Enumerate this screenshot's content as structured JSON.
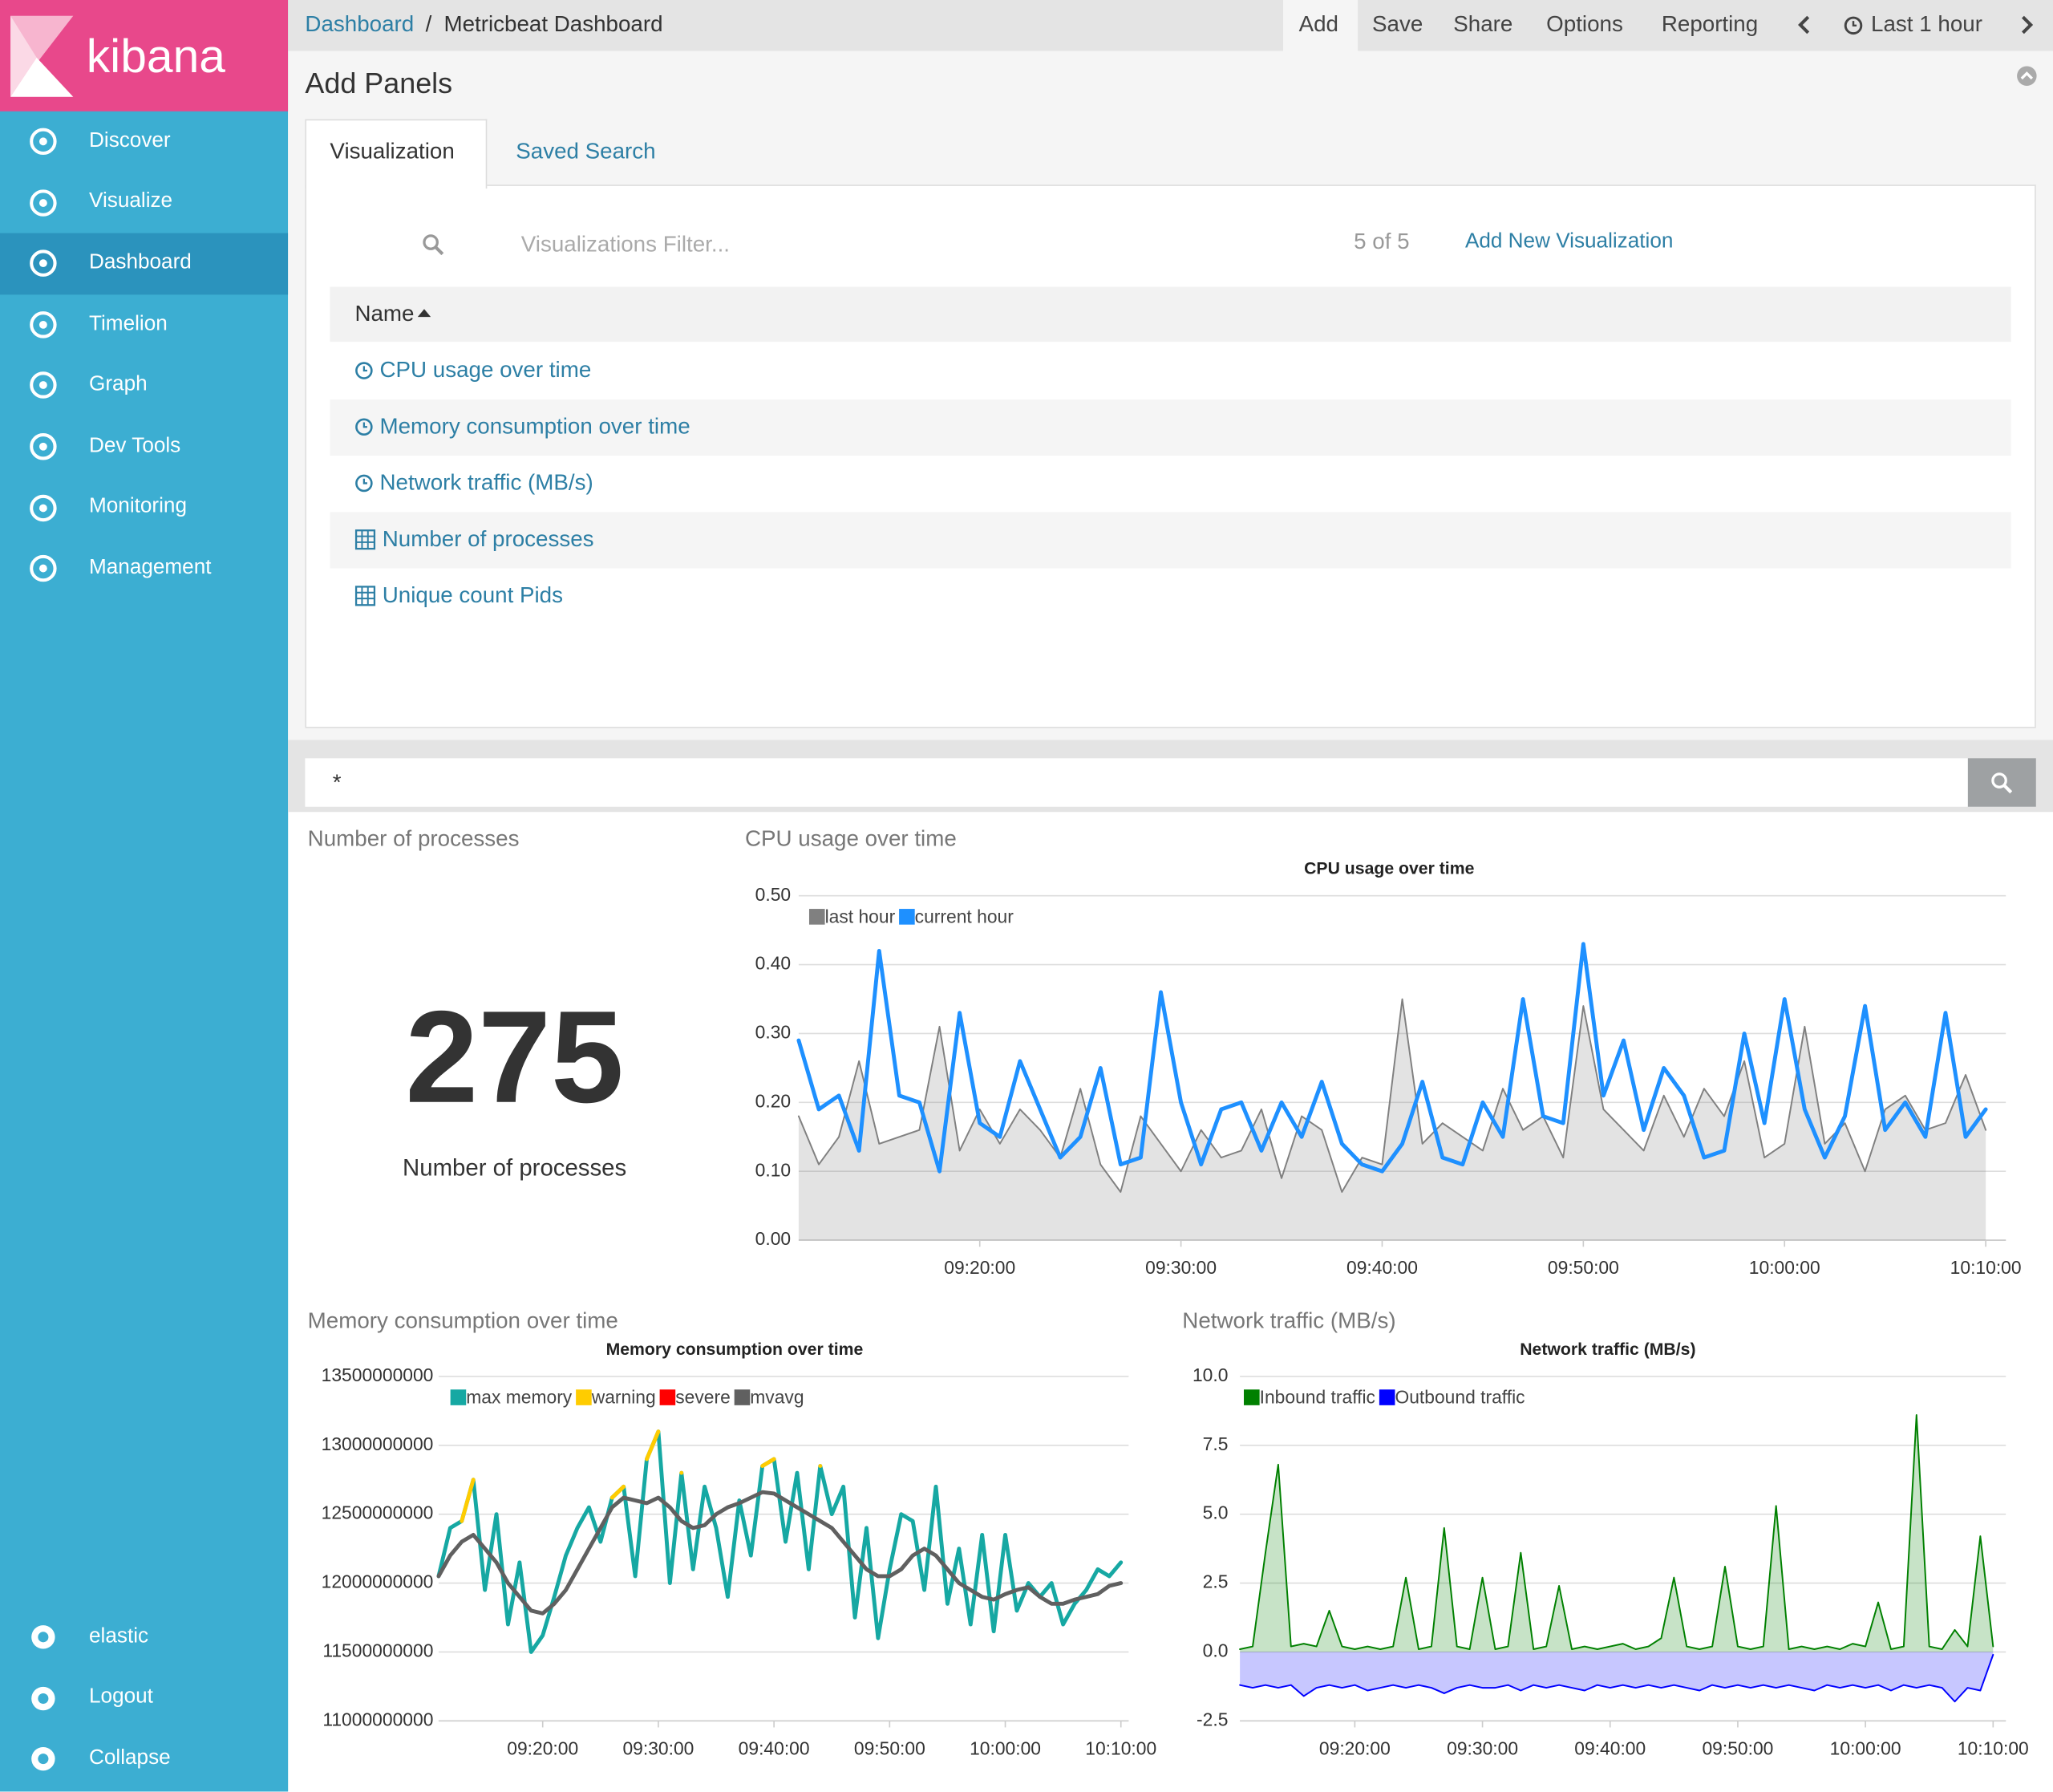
{
  "sidebar": {
    "brand": "kibana",
    "nav": [
      "Discover",
      "Visualize",
      "Dashboard",
      "Timelion",
      "Graph",
      "Dev Tools",
      "Monitoring",
      "Management"
    ],
    "active": "Dashboard",
    "footer": [
      "elastic",
      "Logout",
      "Collapse"
    ]
  },
  "breadcrumb": {
    "items": [
      "Dashboard",
      "Metricbeat Dashboard"
    ],
    "separator": "/"
  },
  "top_menu": [
    "Add",
    "Save",
    "Share",
    "Options",
    "Reporting"
  ],
  "time_range": "Last 1 hour",
  "add_panels": {
    "title": "Add Panels",
    "tabs": [
      "Visualization",
      "Saved Search"
    ],
    "filter_placeholder": "Visualizations Filter...",
    "count": "5 of 5",
    "add_new": "Add New Visualization",
    "column": "Name",
    "items": [
      {
        "name": "CPU usage over time",
        "icon": "clock"
      },
      {
        "name": "Memory consumption over time",
        "icon": "clock"
      },
      {
        "name": "Network traffic (MB/s)",
        "icon": "clock"
      },
      {
        "name": "Number of processes",
        "icon": "table"
      },
      {
        "name": "Unique count Pids",
        "icon": "table"
      }
    ]
  },
  "query": "*",
  "metric": {
    "panel_title": "Number of processes",
    "value": 275,
    "label": "Number of processes"
  },
  "chart_data": [
    {
      "type": "line",
      "panel_title": "CPU usage over time",
      "title": "CPU usage over time",
      "x": [
        "09:11:00",
        "09:12:00",
        "09:13:00",
        "09:14:00",
        "09:15:00",
        "09:16:00",
        "09:17:00",
        "09:18:00",
        "09:19:00",
        "09:20:00",
        "09:21:00",
        "09:22:00",
        "09:23:00",
        "09:24:00",
        "09:25:00",
        "09:26:00",
        "09:27:00",
        "09:28:00",
        "09:29:00",
        "09:30:00",
        "09:31:00",
        "09:32:00",
        "09:33:00",
        "09:34:00",
        "09:35:00",
        "09:36:00",
        "09:37:00",
        "09:38:00",
        "09:39:00",
        "09:40:00",
        "09:41:00",
        "09:42:00",
        "09:43:00",
        "09:44:00",
        "09:45:00",
        "09:46:00",
        "09:47:00",
        "09:48:00",
        "09:49:00",
        "09:50:00",
        "09:51:00",
        "09:52:00",
        "09:53:00",
        "09:54:00",
        "09:55:00",
        "09:56:00",
        "09:57:00",
        "09:58:00",
        "09:59:00",
        "10:00:00",
        "10:01:00",
        "10:02:00",
        "10:03:00",
        "10:04:00",
        "10:05:00",
        "10:06:00",
        "10:07:00",
        "10:08:00",
        "10:09:00",
        "10:10:00"
      ],
      "xlim": [
        "09:11:00",
        "10:11:00"
      ],
      "xticks": [
        "09:20:00",
        "09:30:00",
        "09:40:00",
        "09:50:00",
        "10:00:00",
        "10:10:00"
      ],
      "ylim": [
        0,
        0.5
      ],
      "yticks": [
        {
          "value": 0,
          "label": "0.00"
        },
        {
          "value": 0.1,
          "label": "0.10"
        },
        {
          "value": 0.2,
          "label": "0.20"
        },
        {
          "value": 0.3,
          "label": "0.30"
        },
        {
          "value": 0.4,
          "label": "0.40"
        },
        {
          "value": 0.5,
          "label": "0.50"
        }
      ],
      "grid": true,
      "series": [
        {
          "name": "last hour",
          "color": "#808080",
          "area": true,
          "values": [
            0.18,
            0.11,
            0.15,
            0.26,
            0.14,
            0.15,
            0.16,
            0.31,
            0.13,
            0.19,
            0.14,
            0.19,
            0.16,
            0.12,
            0.22,
            0.11,
            0.07,
            0.18,
            0.14,
            0.1,
            0.16,
            0.12,
            0.13,
            0.19,
            0.09,
            0.18,
            0.16,
            0.07,
            0.12,
            0.11,
            0.35,
            0.14,
            0.17,
            0.15,
            0.13,
            0.22,
            0.16,
            0.18,
            0.12,
            0.34,
            0.19,
            0.16,
            0.13,
            0.21,
            0.15,
            0.22,
            0.18,
            0.26,
            0.12,
            0.14,
            0.31,
            0.14,
            0.17,
            0.1,
            0.19,
            0.21,
            0.16,
            0.17,
            0.24,
            0.16
          ]
        },
        {
          "name": "current hour",
          "color": "#1e90ff",
          "area": false,
          "values": [
            0.29,
            0.19,
            0.21,
            0.13,
            0.42,
            0.21,
            0.2,
            0.1,
            0.33,
            0.17,
            0.15,
            0.26,
            0.19,
            0.12,
            0.15,
            0.25,
            0.11,
            0.12,
            0.36,
            0.2,
            0.11,
            0.19,
            0.2,
            0.13,
            0.2,
            0.15,
            0.23,
            0.14,
            0.11,
            0.1,
            0.14,
            0.23,
            0.12,
            0.11,
            0.2,
            0.15,
            0.35,
            0.18,
            0.17,
            0.43,
            0.21,
            0.29,
            0.16,
            0.25,
            0.21,
            0.12,
            0.13,
            0.3,
            0.17,
            0.35,
            0.19,
            0.12,
            0.18,
            0.34,
            0.16,
            0.2,
            0.15,
            0.33,
            0.15,
            0.19
          ]
        }
      ]
    },
    {
      "type": "line",
      "panel_title": "Memory consumption over time",
      "title": "Memory consumption over time",
      "x": [
        "09:11:00",
        "09:12:00",
        "09:13:00",
        "09:14:00",
        "09:15:00",
        "09:16:00",
        "09:17:00",
        "09:18:00",
        "09:19:00",
        "09:20:00",
        "09:21:00",
        "09:22:00",
        "09:23:00",
        "09:24:00",
        "09:25:00",
        "09:26:00",
        "09:27:00",
        "09:28:00",
        "09:29:00",
        "09:30:00",
        "09:31:00",
        "09:32:00",
        "09:33:00",
        "09:34:00",
        "09:35:00",
        "09:36:00",
        "09:37:00",
        "09:38:00",
        "09:39:00",
        "09:40:00",
        "09:41:00",
        "09:42:00",
        "09:43:00",
        "09:44:00",
        "09:45:00",
        "09:46:00",
        "09:47:00",
        "09:48:00",
        "09:49:00",
        "09:50:00",
        "09:51:00",
        "09:52:00",
        "09:53:00",
        "09:54:00",
        "09:55:00",
        "09:56:00",
        "09:57:00",
        "09:58:00",
        "09:59:00",
        "10:00:00",
        "10:01:00",
        "10:02:00",
        "10:03:00",
        "10:04:00",
        "10:05:00",
        "10:06:00",
        "10:07:00",
        "10:08:00",
        "10:09:00",
        "10:10:00"
      ],
      "xlim": [
        "09:11:00",
        "10:10:40"
      ],
      "xticks": [
        "09:20:00",
        "09:30:00",
        "09:40:00",
        "09:50:00",
        "10:00:00",
        "10:10:00"
      ],
      "ylim": [
        11000000000,
        13500000000
      ],
      "yticks": [
        11000000000,
        11500000000,
        12000000000,
        12500000000,
        13000000000,
        13500000000
      ],
      "grid": true,
      "series": [
        {
          "name": "max memory",
          "color": "#16a8a3",
          "area": false,
          "values": [
            12050000000,
            12400000000,
            12450000000,
            12750000000,
            11950000000,
            12500000000,
            11700000000,
            12150000000,
            11500000000,
            11620000000,
            11900000000,
            12200000000,
            12400000000,
            12550000000,
            12300000000,
            12620000000,
            12700000000,
            12050000000,
            12900000000,
            13100000000,
            12000000000,
            12800000000,
            12100000000,
            12700000000,
            12400000000,
            11900000000,
            12600000000,
            12200000000,
            12850000000,
            12900000000,
            12300000000,
            12800000000,
            12100000000,
            12850000000,
            12500000000,
            12700000000,
            11750000000,
            12400000000,
            11600000000,
            12100000000,
            12500000000,
            12450000000,
            11950000000,
            12700000000,
            11850000000,
            12250000000,
            11700000000,
            12350000000,
            11650000000,
            12350000000,
            11800000000,
            12000000000,
            11900000000,
            12000000000,
            11700000000,
            11850000000,
            11950000000,
            12100000000,
            12050000000,
            12150000000
          ]
        },
        {
          "name": "warning",
          "color": "#ffcc00",
          "area": false,
          "values": [
            null,
            null,
            12450000000,
            12750000000,
            null,
            null,
            null,
            null,
            null,
            null,
            null,
            null,
            null,
            null,
            null,
            12620000000,
            12700000000,
            null,
            12900000000,
            13100000000,
            null,
            12800000000,
            null,
            null,
            null,
            null,
            null,
            null,
            12850000000,
            12900000000,
            null,
            null,
            null,
            12850000000,
            null,
            null,
            null,
            null,
            null,
            null,
            null,
            null,
            null,
            null,
            null,
            null,
            null,
            null,
            null,
            null,
            null,
            null,
            null,
            null,
            null,
            null,
            null,
            null,
            null,
            null
          ]
        },
        {
          "name": "severe",
          "color": "#ff0000",
          "area": false,
          "values": [
            null,
            null,
            null,
            null,
            null,
            null,
            null,
            null,
            null,
            null,
            null,
            null,
            null,
            null,
            null,
            null,
            null,
            null,
            null,
            null,
            null,
            null,
            null,
            null,
            null,
            null,
            null,
            null,
            null,
            null,
            null,
            null,
            null,
            null,
            null,
            null,
            null,
            null,
            null,
            null,
            null,
            null,
            null,
            null,
            null,
            null,
            null,
            null,
            null,
            null,
            null,
            null,
            null,
            null,
            null,
            null,
            null,
            null,
            null,
            null
          ]
        },
        {
          "name": "mvavg",
          "color": "#606060",
          "area": false,
          "values": [
            12050000000,
            12200000000,
            12300000000,
            12350000000,
            12250000000,
            12150000000,
            12000000000,
            11900000000,
            11800000000,
            11780000000,
            11850000000,
            11950000000,
            12100000000,
            12250000000,
            12400000000,
            12550000000,
            12620000000,
            12600000000,
            12580000000,
            12620000000,
            12550000000,
            12450000000,
            12400000000,
            12420000000,
            12500000000,
            12550000000,
            12580000000,
            12620000000,
            12660000000,
            12650000000,
            12600000000,
            12550000000,
            12500000000,
            12450000000,
            12400000000,
            12300000000,
            12200000000,
            12100000000,
            12050000000,
            12050000000,
            12100000000,
            12200000000,
            12250000000,
            12200000000,
            12100000000,
            12000000000,
            11950000000,
            11900000000,
            11880000000,
            11920000000,
            11950000000,
            11970000000,
            11900000000,
            11850000000,
            11850000000,
            11880000000,
            11900000000,
            11920000000,
            11980000000,
            12000000000
          ]
        }
      ]
    },
    {
      "type": "line",
      "panel_title": "Network traffic (MB/s)",
      "title": "Network traffic (MB/s)",
      "x": [
        "09:11:00",
        "09:12:00",
        "09:13:00",
        "09:14:00",
        "09:15:00",
        "09:16:00",
        "09:17:00",
        "09:18:00",
        "09:19:00",
        "09:20:00",
        "09:21:00",
        "09:22:00",
        "09:23:00",
        "09:24:00",
        "09:25:00",
        "09:26:00",
        "09:27:00",
        "09:28:00",
        "09:29:00",
        "09:30:00",
        "09:31:00",
        "09:32:00",
        "09:33:00",
        "09:34:00",
        "09:35:00",
        "09:36:00",
        "09:37:00",
        "09:38:00",
        "09:39:00",
        "09:40:00",
        "09:41:00",
        "09:42:00",
        "09:43:00",
        "09:44:00",
        "09:45:00",
        "09:46:00",
        "09:47:00",
        "09:48:00",
        "09:49:00",
        "09:50:00",
        "09:51:00",
        "09:52:00",
        "09:53:00",
        "09:54:00",
        "09:55:00",
        "09:56:00",
        "09:57:00",
        "09:58:00",
        "09:59:00",
        "10:00:00",
        "10:01:00",
        "10:02:00",
        "10:03:00",
        "10:04:00",
        "10:05:00",
        "10:06:00",
        "10:07:00",
        "10:08:00",
        "10:09:00",
        "10:10:00"
      ],
      "xlim": [
        "09:11:00",
        "10:11:00"
      ],
      "xticks": [
        "09:20:00",
        "09:30:00",
        "09:40:00",
        "09:50:00",
        "10:00:00",
        "10:10:00"
      ],
      "ylim": [
        -2.5,
        10
      ],
      "yticks": [
        -2.5,
        {
          "value": 0,
          "label": "0.0"
        },
        2.5,
        {
          "value": 5,
          "label": "5.0"
        },
        7.5,
        {
          "value": 10,
          "label": "10.0"
        }
      ],
      "grid": true,
      "series": [
        {
          "name": "Inbound traffic",
          "color": "#008000",
          "area": true,
          "values": [
            0.1,
            0.2,
            3.6,
            6.8,
            0.2,
            0.3,
            0.2,
            1.5,
            0.2,
            0.1,
            0.2,
            0.1,
            0.2,
            2.7,
            0.1,
            0.2,
            4.5,
            0.2,
            0.1,
            2.7,
            0.1,
            0.2,
            3.6,
            0.1,
            0.2,
            2.4,
            0.1,
            0.2,
            0.1,
            0.2,
            0.3,
            0.1,
            0.2,
            0.5,
            2.7,
            0.2,
            0.1,
            0.2,
            3.1,
            0.2,
            0.1,
            0.2,
            5.3,
            0.1,
            0.2,
            0.1,
            0.2,
            0.1,
            0.3,
            0.2,
            1.8,
            0.1,
            0.2,
            8.6,
            0.2,
            0.1,
            0.8,
            0.2,
            4.2,
            0.2
          ]
        },
        {
          "name": "Outbound traffic",
          "color": "#0000ff",
          "area": true,
          "values": [
            -1.2,
            -1.3,
            -1.2,
            -1.3,
            -1.2,
            -1.6,
            -1.3,
            -1.2,
            -1.3,
            -1.2,
            -1.4,
            -1.3,
            -1.2,
            -1.3,
            -1.2,
            -1.3,
            -1.5,
            -1.3,
            -1.2,
            -1.3,
            -1.3,
            -1.2,
            -1.4,
            -1.2,
            -1.3,
            -1.2,
            -1.3,
            -1.4,
            -1.2,
            -1.3,
            -1.2,
            -1.3,
            -1.2,
            -1.3,
            -1.2,
            -1.3,
            -1.4,
            -1.2,
            -1.3,
            -1.2,
            -1.3,
            -1.2,
            -1.3,
            -1.2,
            -1.3,
            -1.4,
            -1.2,
            -1.3,
            -1.2,
            -1.3,
            -1.2,
            -1.4,
            -1.2,
            -1.3,
            -1.2,
            -1.3,
            -1.8,
            -1.3,
            -1.4,
            -0.1
          ]
        }
      ]
    }
  ]
}
